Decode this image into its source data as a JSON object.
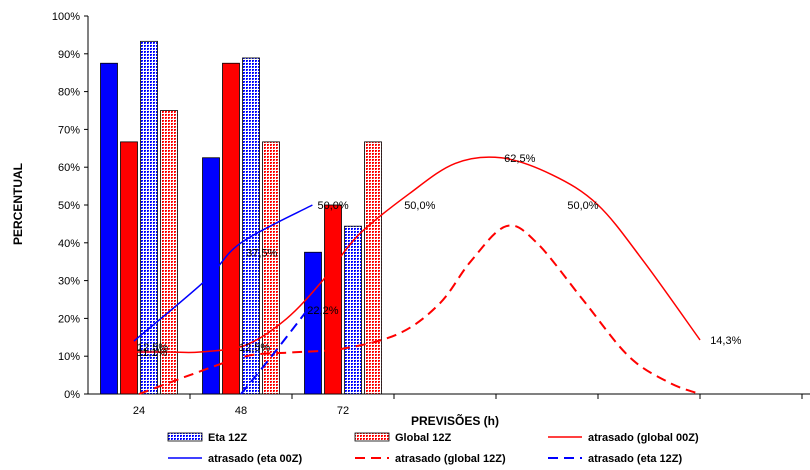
{
  "chart_data": {
    "type": "bar",
    "title": "",
    "xlabel": "PREVISÕES (h)",
    "ylabel": "PERCENTUAL",
    "ylim": [
      0,
      100
    ],
    "y_ticks": [
      "0%",
      "10%",
      "20%",
      "30%",
      "40%",
      "50%",
      "60%",
      "70%",
      "80%",
      "90%",
      "100%"
    ],
    "categories": [
      "24",
      "48",
      "72"
    ],
    "grid": false,
    "legend_position": "bottom",
    "bar_series": [
      {
        "name": "",
        "color": "#0000ff",
        "pattern": "solid",
        "values": [
          87.5,
          62.5,
          37.5
        ]
      },
      {
        "name": "",
        "color": "#ff0000",
        "pattern": "solid",
        "values": [
          66.7,
          87.5,
          50.0
        ]
      },
      {
        "name": "Eta 12Z",
        "color": "#0000ff",
        "pattern": "dotted",
        "values": [
          93.3,
          88.9,
          44.4
        ]
      },
      {
        "name": "Global 12Z",
        "color": "#ff0000",
        "pattern": "dotted",
        "values": [
          75.0,
          66.7,
          66.7
        ]
      }
    ],
    "line_series": [
      {
        "name": "atrasado (global 00Z)",
        "color": "#ff0000",
        "dash": "solid",
        "x": [
          0.45,
          0.8,
          1.1,
          1.55,
          1.95,
          2.3,
          2.65,
          3.15,
          3.6,
          4.05,
          4.55,
          5.0,
          5.45,
          6.0
        ],
        "values": [
          11.1,
          11.1,
          11.1,
          13.0,
          20.0,
          30.0,
          42.0,
          53.0,
          61.0,
          62.5,
          58.0,
          50.0,
          35.0,
          14.3
        ]
      },
      {
        "name": "atrasado (eta 00Z)",
        "color": "#0000ff",
        "dash": "solid",
        "x": [
          0.45,
          1.15,
          1.5,
          2.2
        ],
        "values": [
          14.0,
          30.0,
          40.0,
          50.0
        ]
      },
      {
        "name": "atrasado (global 12Z)",
        "color": "#ff0000",
        "dash": "dashed",
        "x": [
          0.5,
          1.0,
          1.55,
          2.0,
          2.5,
          3.05,
          3.45,
          3.75,
          4.1,
          4.4,
          4.85,
          5.3,
          5.7,
          6.0
        ],
        "values": [
          0,
          5,
          10,
          11,
          12,
          16,
          24,
          35,
          44.4,
          40,
          25,
          10,
          3,
          0
        ]
      },
      {
        "name": "atrasado (eta 12Z)",
        "color": "#0000ff",
        "dash": "dashed",
        "x": [
          1.5,
          1.8,
          2.15
        ],
        "values": [
          0,
          10,
          22.2
        ]
      }
    ],
    "annotations": [
      {
        "text": "62,5%",
        "x": 4.08,
        "y": 62.5
      },
      {
        "text": "50,0%",
        "x": 2.25,
        "y": 50.0
      },
      {
        "text": "50,0%",
        "x": 3.1,
        "y": 50.0
      },
      {
        "text": "50,0%",
        "x": 4.7,
        "y": 50.0
      },
      {
        "text": "37,5%",
        "x": 1.55,
        "y": 37.5
      },
      {
        "text": "22,2%",
        "x": 2.15,
        "y": 22.2
      },
      {
        "text": "12,5%",
        "x": 0.48,
        "y": 12.5
      },
      {
        "text": "11,1%",
        "x": 0.48,
        "y": 11.1
      },
      {
        "text": "12,5%",
        "x": 1.48,
        "y": 12.5
      },
      {
        "text": "14,3%",
        "x": 6.1,
        "y": 14.3
      }
    ],
    "legend": [
      {
        "label": "Eta 12Z",
        "kind": "bar",
        "color": "#0000ff",
        "pattern": "dotted"
      },
      {
        "label": "Global 12Z",
        "kind": "bar",
        "color": "#ff0000",
        "pattern": "dotted"
      },
      {
        "label": "atrasado (global 00Z)",
        "kind": "line",
        "color": "#ff0000",
        "dash": "solid"
      },
      {
        "label": "atrasado (eta 00Z)",
        "kind": "line",
        "color": "#0000ff",
        "dash": "solid"
      },
      {
        "label": "atrasado (global 12Z)",
        "kind": "line",
        "color": "#ff0000",
        "dash": "dashed"
      },
      {
        "label": "atrasado (eta 12Z)",
        "kind": "line",
        "color": "#0000ff",
        "dash": "dashed"
      }
    ]
  }
}
